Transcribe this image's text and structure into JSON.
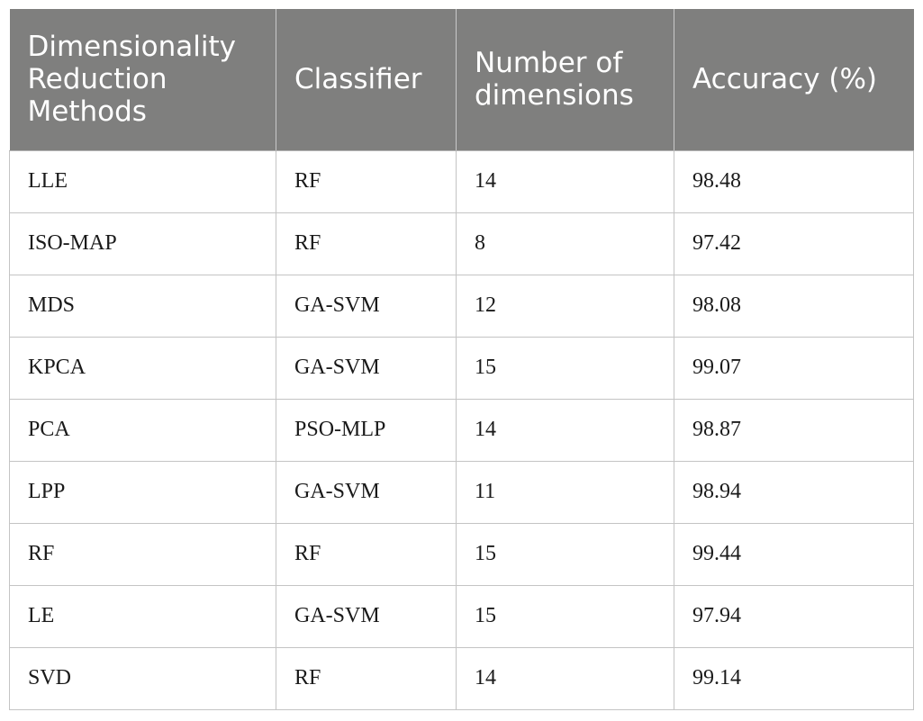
{
  "table": {
    "headers": [
      "Dimensionality Reduction Methods",
      "Classifier",
      "Number of dimensions",
      "Accuracy (%)"
    ],
    "rows": [
      [
        "LLE",
        "RF",
        "14",
        "98.48"
      ],
      [
        "ISO-MAP",
        "RF",
        "8",
        "97.42"
      ],
      [
        "MDS",
        "GA-SVM",
        "12",
        "98.08"
      ],
      [
        "KPCA",
        "GA-SVM",
        "15",
        "99.07"
      ],
      [
        "PCA",
        "PSO-MLP",
        "14",
        "98.87"
      ],
      [
        "LPP",
        "GA-SVM",
        "11",
        "98.94"
      ],
      [
        "RF",
        "RF",
        "15",
        "99.44"
      ],
      [
        "LE",
        "GA-SVM",
        "15",
        "97.94"
      ],
      [
        "SVD",
        "RF",
        "14",
        "99.14"
      ]
    ]
  },
  "colors": {
    "header_bg": "#7f7f7e",
    "header_text": "#ffffff",
    "grid": "#c4c4c4"
  }
}
